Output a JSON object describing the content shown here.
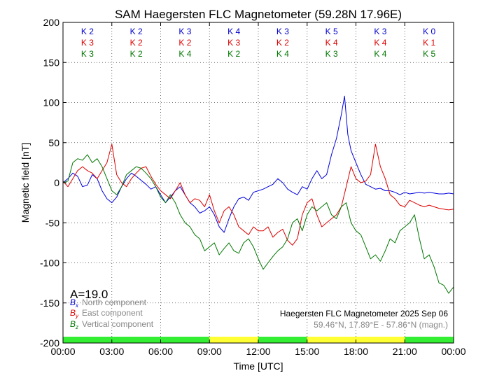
{
  "chart_data": {
    "type": "line",
    "title": "SAM Haegersten FLC Magnetometer (59.28N 17.96E)",
    "xlabel": "Time [UTC]",
    "ylabel": "Magnetic field [nT]",
    "xlim": [
      0,
      24
    ],
    "ylim": [
      -200,
      200
    ],
    "x_tick_labels": [
      "00:00",
      "03:00",
      "06:00",
      "09:00",
      "12:00",
      "15:00",
      "18:00",
      "21:00",
      "00:00"
    ],
    "y_ticks": [
      -200,
      -150,
      -100,
      -50,
      0,
      50,
      100,
      150,
      200
    ],
    "grid": true,
    "a_index_label": "A=19.0",
    "legend": {
      "placement": "lower-left",
      "entries": [
        {
          "symbol": "B",
          "subscript": "x",
          "label": "North component",
          "color": "#0000cc"
        },
        {
          "symbol": "B",
          "subscript": "y",
          "label": "East component",
          "color": "#dd0000"
        },
        {
          "symbol": "B",
          "subscript": "z",
          "label": "Vertical component",
          "color": "#007700"
        }
      ]
    },
    "station_info": {
      "line1": "Haegersten FLC Magnetometer 2025 Sep 06",
      "line2": "59.46°N, 17.89°E - 57.86°N (magn.)"
    },
    "k_indices": [
      {
        "x": "K 2",
        "y": "K 3",
        "z": "K 3"
      },
      {
        "x": "K 2",
        "y": "K 2",
        "z": "K 2"
      },
      {
        "x": "K 3",
        "y": "K 2",
        "z": "K 4"
      },
      {
        "x": "K 4",
        "y": "K 3",
        "z": "K 2"
      },
      {
        "x": "K 3",
        "y": "K 2",
        "z": "K 4"
      },
      {
        "x": "K 5",
        "y": "K 4",
        "z": "K 3"
      },
      {
        "x": "K 3",
        "y": "K 4",
        "z": "K 4"
      },
      {
        "x": "K 0",
        "y": "K 1",
        "z": "K 5"
      }
    ],
    "activity_bar": [
      {
        "start": 0,
        "end": 9,
        "color": "#33ee33"
      },
      {
        "start": 9,
        "end": 12,
        "color": "#ffff33"
      },
      {
        "start": 12,
        "end": 15,
        "color": "#33ee33"
      },
      {
        "start": 15,
        "end": 21,
        "color": "#ffff33"
      },
      {
        "start": 21,
        "end": 24,
        "color": "#33ee33"
      }
    ],
    "series": [
      {
        "name": "North component",
        "color": "#0000dd",
        "x": [
          0,
          0.3,
          0.6,
          0.9,
          1.2,
          1.5,
          1.8,
          2.1,
          2.4,
          2.7,
          3.0,
          3.3,
          3.6,
          3.9,
          4.2,
          4.5,
          4.8,
          5.1,
          5.4,
          5.7,
          6.0,
          6.3,
          6.6,
          6.9,
          7.2,
          7.5,
          7.8,
          8.1,
          8.4,
          8.7,
          9.0,
          9.3,
          9.6,
          9.9,
          10.2,
          10.5,
          10.8,
          11.1,
          11.4,
          11.7,
          12.0,
          12.3,
          12.6,
          12.9,
          13.2,
          13.5,
          13.8,
          14.1,
          14.4,
          14.7,
          15.0,
          15.3,
          15.6,
          15.9,
          16.2,
          16.5,
          16.8,
          17.1,
          17.3,
          17.5,
          17.7,
          18.0,
          18.3,
          18.6,
          18.9,
          19.2,
          19.5,
          19.8,
          20.1,
          20.4,
          20.7,
          21.0,
          21.3,
          21.6,
          21.9,
          22.2,
          22.5,
          22.8,
          23.1,
          23.4,
          23.7,
          24.0
        ],
        "y": [
          0,
          5,
          12,
          8,
          -5,
          -3,
          10,
          5,
          -10,
          -20,
          -25,
          -18,
          -5,
          5,
          12,
          8,
          3,
          -2,
          -8,
          -5,
          -15,
          -25,
          -18,
          -10,
          -5,
          -15,
          -25,
          -30,
          -38,
          -35,
          -30,
          -40,
          -55,
          -62,
          -45,
          -30,
          -20,
          -18,
          -22,
          -12,
          -10,
          -8,
          -5,
          -2,
          5,
          0,
          -8,
          -12,
          -15,
          -5,
          -8,
          5,
          15,
          5,
          10,
          35,
          55,
          85,
          108,
          60,
          40,
          25,
          10,
          -2,
          -5,
          -8,
          -7,
          -10,
          -10,
          -12,
          -15,
          -12,
          -14,
          -13,
          -12,
          -13,
          -12,
          -13,
          -14,
          -14,
          -13,
          -14
        ]
      },
      {
        "name": "East component",
        "color": "#dd0000",
        "x": [
          0,
          0.3,
          0.6,
          0.9,
          1.2,
          1.5,
          1.8,
          2.1,
          2.4,
          2.7,
          3.0,
          3.3,
          3.6,
          3.9,
          4.2,
          4.5,
          4.8,
          5.1,
          5.4,
          5.7,
          6.0,
          6.3,
          6.6,
          6.9,
          7.2,
          7.5,
          7.8,
          8.1,
          8.4,
          8.7,
          9.0,
          9.3,
          9.6,
          9.9,
          10.2,
          10.5,
          10.8,
          11.1,
          11.4,
          11.7,
          12.0,
          12.3,
          12.6,
          12.9,
          13.2,
          13.5,
          13.8,
          14.1,
          14.4,
          14.7,
          15.0,
          15.3,
          15.6,
          15.9,
          16.2,
          16.5,
          16.8,
          17.1,
          17.4,
          17.7,
          18.0,
          18.3,
          18.6,
          18.9,
          19.2,
          19.5,
          19.8,
          20.1,
          20.4,
          20.7,
          21.0,
          21.3,
          21.6,
          21.9,
          22.2,
          22.5,
          22.8,
          23.1,
          23.4,
          23.7,
          24.0
        ],
        "y": [
          2,
          -5,
          5,
          15,
          20,
          15,
          12,
          5,
          15,
          25,
          48,
          10,
          0,
          -5,
          5,
          12,
          18,
          20,
          8,
          -2,
          -10,
          -15,
          -20,
          -10,
          0,
          -15,
          -25,
          -20,
          -22,
          -30,
          -15,
          -35,
          -50,
          -35,
          -30,
          -40,
          -55,
          -60,
          -65,
          -55,
          -60,
          -60,
          -55,
          -68,
          -62,
          -58,
          -72,
          -78,
          -70,
          -40,
          -25,
          -20,
          -40,
          -55,
          -50,
          -45,
          -40,
          -30,
          -5,
          20,
          5,
          0,
          2,
          10,
          48,
          20,
          5,
          -15,
          -20,
          -28,
          -30,
          -22,
          -25,
          -28,
          -30,
          -28,
          -30,
          -32,
          -33,
          -34,
          -33
        ]
      },
      {
        "name": "Vertical component",
        "color": "#007700",
        "x": [
          0,
          0.3,
          0.6,
          0.9,
          1.2,
          1.5,
          1.8,
          2.1,
          2.4,
          2.7,
          3.0,
          3.3,
          3.6,
          3.9,
          4.2,
          4.5,
          4.8,
          5.1,
          5.4,
          5.7,
          6.0,
          6.3,
          6.6,
          6.9,
          7.2,
          7.5,
          7.8,
          8.1,
          8.4,
          8.7,
          9.0,
          9.3,
          9.6,
          9.9,
          10.2,
          10.5,
          10.8,
          11.1,
          11.4,
          11.7,
          12.0,
          12.3,
          12.6,
          12.9,
          13.2,
          13.5,
          13.8,
          14.1,
          14.4,
          14.7,
          15.0,
          15.3,
          15.6,
          15.9,
          16.2,
          16.5,
          16.8,
          17.1,
          17.4,
          17.7,
          18.0,
          18.3,
          18.6,
          18.9,
          19.2,
          19.5,
          19.8,
          20.1,
          20.4,
          20.7,
          21.0,
          21.3,
          21.6,
          21.9,
          22.2,
          22.5,
          22.8,
          23.1,
          23.4,
          23.7,
          24.0
        ],
        "y": [
          0,
          2,
          25,
          30,
          28,
          35,
          25,
          30,
          20,
          5,
          -10,
          -15,
          -5,
          10,
          15,
          20,
          18,
          12,
          5,
          -5,
          -18,
          -25,
          -15,
          -25,
          -40,
          -50,
          -55,
          -65,
          -70,
          -85,
          -80,
          -75,
          -90,
          -82,
          -75,
          -85,
          -88,
          -75,
          -70,
          -80,
          -95,
          -108,
          -100,
          -92,
          -85,
          -80,
          -70,
          -50,
          -45,
          -60,
          -40,
          -30,
          -35,
          -30,
          -25,
          -40,
          -45,
          -30,
          -25,
          -50,
          -60,
          -65,
          -80,
          -95,
          -90,
          -98,
          -85,
          -70,
          -75,
          -60,
          -55,
          -50,
          -40,
          -70,
          -95,
          -90,
          -105,
          -125,
          -128,
          -138,
          -130
        ]
      }
    ]
  }
}
